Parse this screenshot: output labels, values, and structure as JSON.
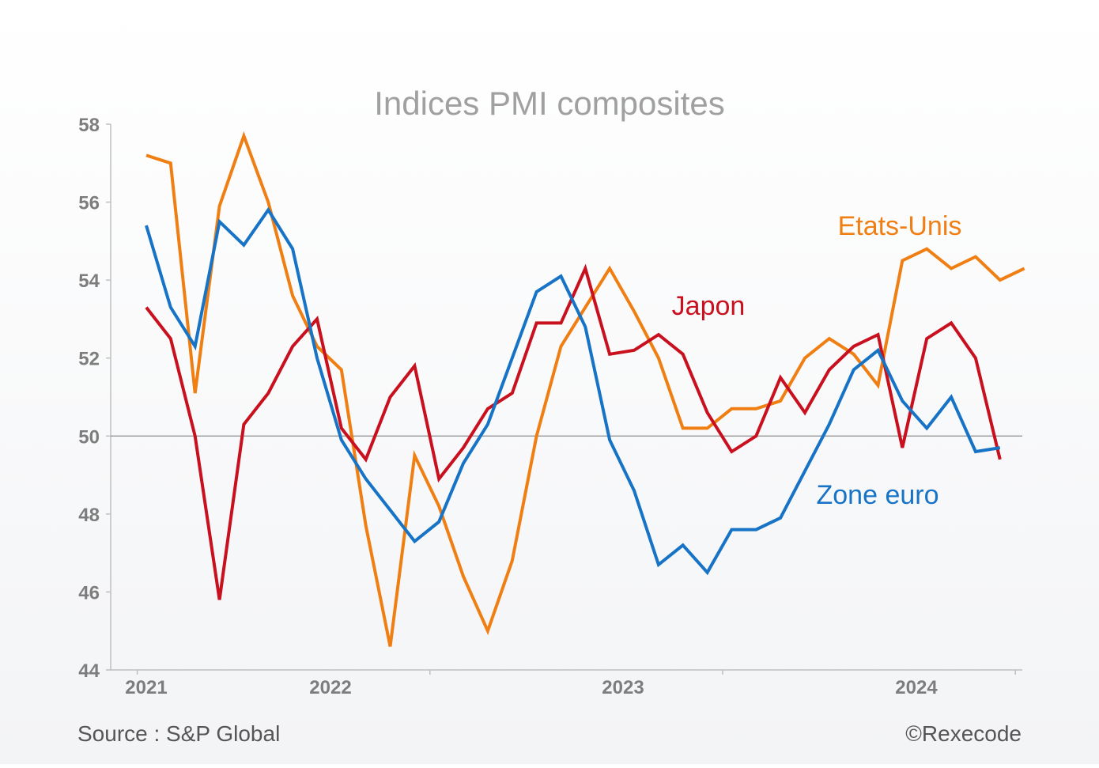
{
  "chart_data": {
    "type": "line",
    "title": "Indices PMI composites",
    "x_start": "2021-01",
    "x_step": "month",
    "year_labels": [
      "2021",
      "2022",
      "2023",
      "2024"
    ],
    "ylim": [
      44,
      58
    ],
    "yticks": [
      44,
      46,
      48,
      50,
      52,
      54,
      56,
      58
    ],
    "reference_line": 50,
    "grid": false,
    "series": [
      {
        "name": "Etats-Unis",
        "color": "#f07f13",
        "values": [
          57.2,
          57.0,
          51.1,
          55.9,
          57.7,
          56.0,
          53.6,
          52.3,
          51.7,
          47.7,
          44.6,
          49.5,
          48.2,
          46.4,
          45.0,
          46.8,
          50.0,
          52.3,
          53.3,
          54.3,
          53.2,
          52.0,
          50.2,
          50.2,
          50.7,
          50.7,
          50.9,
          52.0,
          52.5,
          52.1,
          51.3,
          54.5,
          54.8,
          54.3,
          54.6,
          54.0,
          54.3
        ]
      },
      {
        "name": "Japon",
        "color": "#c8101e",
        "values": [
          53.3,
          52.5,
          50.0,
          45.8,
          50.3,
          51.1,
          52.3,
          53.0,
          50.2,
          49.4,
          51.0,
          51.8,
          48.9,
          49.7,
          50.7,
          51.1,
          52.9,
          52.9,
          54.3,
          52.1,
          52.2,
          52.6,
          52.1,
          50.6,
          49.6,
          50.0,
          51.5,
          50.6,
          51.7,
          52.3,
          52.6,
          49.7,
          52.5,
          52.9,
          52.0,
          49.4
        ]
      },
      {
        "name": "Zone euro",
        "color": "#1673c5",
        "values": [
          55.4,
          53.3,
          52.3,
          55.5,
          54.9,
          55.8,
          54.8,
          52.0,
          49.9,
          48.9,
          48.1,
          47.3,
          47.8,
          49.3,
          50.3,
          52.0,
          53.7,
          54.1,
          52.8,
          49.9,
          48.6,
          46.7,
          47.2,
          46.5,
          47.6,
          47.6,
          47.9,
          49.1,
          50.3,
          51.7,
          52.2,
          50.9,
          50.2,
          51.0,
          49.6,
          49.7
        ]
      }
    ],
    "source": "Source : S&P Global",
    "credit": "©Rexecode"
  },
  "colors": {
    "axis": "#bfbfbf",
    "reference_line": "#8c8c8c",
    "tick_text": "#7d7d7d"
  }
}
